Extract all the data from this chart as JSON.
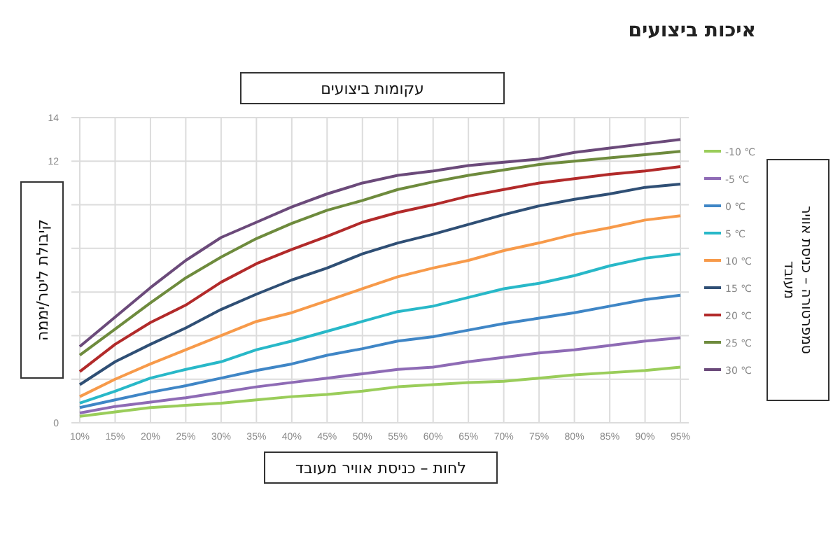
{
  "chart_data": {
    "type": "line",
    "title": "איכות ביצועים",
    "subtitle": "עקומות ביצועים",
    "xlabel": "לחות – כניסת אוויר מעובד",
    "ylabel": "קיבולת ליטר/יממה",
    "legend_title": "טמפרטורה – כניסת אוויר מעובד",
    "categories": [
      "10%",
      "15%",
      "20%",
      "25%",
      "30%",
      "35%",
      "40%",
      "45%",
      "50%",
      "55%",
      "60%",
      "65%",
      "70%",
      "75%",
      "80%",
      "85%",
      "90%",
      "95%"
    ],
    "ylim": [
      0,
      14
    ],
    "yticks": [
      0,
      {
        "value": 2,
        "label": null
      },
      {
        "value": 4,
        "label": null
      },
      {
        "value": 6,
        "label": null
      },
      {
        "value": 8,
        "label": null
      },
      {
        "value": 10,
        "label": null
      },
      12,
      14
    ],
    "grid": true,
    "legend": "right",
    "marker": "none",
    "line_style": "solid",
    "series": [
      {
        "name": "-10 ℃",
        "color": "#9acd5a",
        "values": [
          0.3,
          0.5,
          0.7,
          0.8,
          0.9,
          1.05,
          1.2,
          1.3,
          1.45,
          1.65,
          1.75,
          1.85,
          1.9,
          2.05,
          2.2,
          2.3,
          2.4,
          2.55
        ]
      },
      {
        "name": "-5 ℃",
        "color": "#8e6bb5",
        "values": [
          0.45,
          0.75,
          0.95,
          1.15,
          1.4,
          1.65,
          1.85,
          2.05,
          2.25,
          2.45,
          2.55,
          2.8,
          3.0,
          3.2,
          3.35,
          3.55,
          3.75,
          3.9
        ]
      },
      {
        "name": "0 ℃",
        "color": "#3f86c6",
        "values": [
          0.7,
          1.05,
          1.4,
          1.7,
          2.05,
          2.4,
          2.7,
          3.1,
          3.4,
          3.75,
          3.95,
          4.25,
          4.55,
          4.8,
          5.05,
          5.35,
          5.65,
          5.85
        ]
      },
      {
        "name": "5 ℃",
        "color": "#28b8c8",
        "values": [
          0.9,
          1.45,
          2.05,
          2.45,
          2.8,
          3.35,
          3.75,
          4.2,
          4.65,
          5.1,
          5.35,
          5.75,
          6.15,
          6.4,
          6.75,
          7.2,
          7.55,
          7.75
        ]
      },
      {
        "name": "10 ℃",
        "color": "#f79a4a",
        "values": [
          1.2,
          2.0,
          2.7,
          3.35,
          4.0,
          4.65,
          5.05,
          5.6,
          6.15,
          6.7,
          7.1,
          7.45,
          7.9,
          8.25,
          8.65,
          8.95,
          9.3,
          9.5
        ]
      },
      {
        "name": "15 ℃",
        "color": "#2f4f75",
        "values": [
          1.75,
          2.8,
          3.6,
          4.35,
          5.2,
          5.9,
          6.55,
          7.1,
          7.75,
          8.25,
          8.65,
          9.1,
          9.55,
          9.95,
          10.25,
          10.5,
          10.8,
          10.95
        ]
      },
      {
        "name": "20 ℃",
        "color": "#b22a2a",
        "values": [
          2.35,
          3.6,
          4.6,
          5.4,
          6.45,
          7.3,
          7.95,
          8.55,
          9.2,
          9.65,
          10.0,
          10.4,
          10.7,
          11.0,
          11.2,
          11.4,
          11.55,
          11.75
        ]
      },
      {
        "name": "25 ℃",
        "color": "#6e8b3d",
        "values": [
          3.1,
          4.3,
          5.5,
          6.65,
          7.6,
          8.45,
          9.15,
          9.75,
          10.2,
          10.7,
          11.05,
          11.35,
          11.6,
          11.85,
          12.0,
          12.15,
          12.3,
          12.45
        ]
      },
      {
        "name": "30 ℃",
        "color": "#6b4a7a",
        "values": [
          3.5,
          4.85,
          6.2,
          7.45,
          8.5,
          9.2,
          9.9,
          10.5,
          11.0,
          11.35,
          11.55,
          11.8,
          11.95,
          12.1,
          12.4,
          12.6,
          12.8,
          13.0
        ]
      }
    ]
  }
}
